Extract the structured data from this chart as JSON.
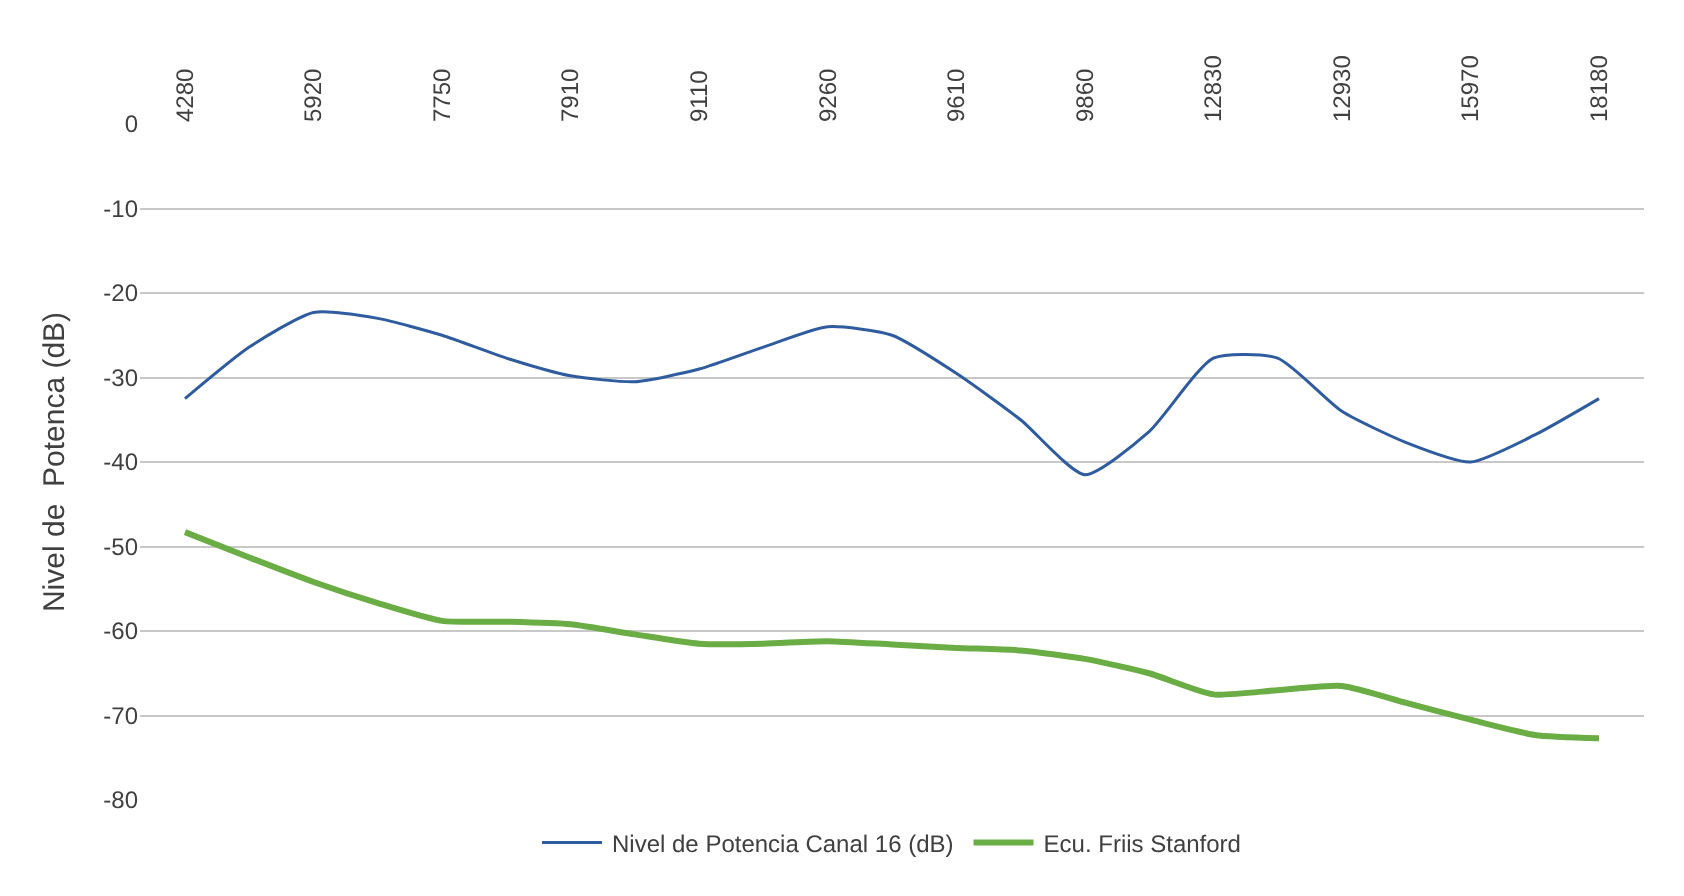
{
  "chart_data": {
    "type": "line",
    "ylabel": "Nivel de  Potenca (dB)",
    "categories": [
      "4280",
      null,
      "5920",
      null,
      "7750",
      null,
      "7910",
      null,
      "9110",
      null,
      "9260",
      null,
      "9610",
      null,
      "9860",
      null,
      "12830",
      null,
      "12930",
      null,
      "15970",
      null,
      "18180"
    ],
    "series": [
      {
        "name": "Nivel de Potencia Canal 16 (dB)",
        "color": "#2f5c9e",
        "values": [
          -32.5,
          -26.4,
          -22.3,
          -23,
          -25,
          -27.7,
          -29.8,
          -30.5,
          -29,
          -26.4,
          -24,
          -25,
          -29.5,
          -35,
          -41.5,
          -36.4,
          -27.7,
          -27.7,
          -34,
          -37.7,
          -40,
          -36.8,
          -32.5
        ]
      },
      {
        "name": "Ecu. Friis Stanford",
        "color": "#6aad45",
        "values": [
          -48.3,
          -51.3,
          -54.2,
          -56.7,
          -58.8,
          -58.9,
          -59.2,
          -60.4,
          -61.5,
          -61.5,
          -61.2,
          -61.6,
          -62,
          -62.3,
          -63.3,
          -65,
          -67.5,
          -67,
          -66.5,
          -68.5,
          -70.5,
          -72.3,
          -72.7
        ]
      }
    ],
    "ylim": [
      -80,
      0
    ],
    "yticks": [
      0,
      -10,
      -20,
      -30,
      -40,
      -50,
      -60,
      -70,
      -80
    ],
    "grid": "y",
    "legend": "bottom",
    "marker": "none",
    "line_style": "solid"
  }
}
